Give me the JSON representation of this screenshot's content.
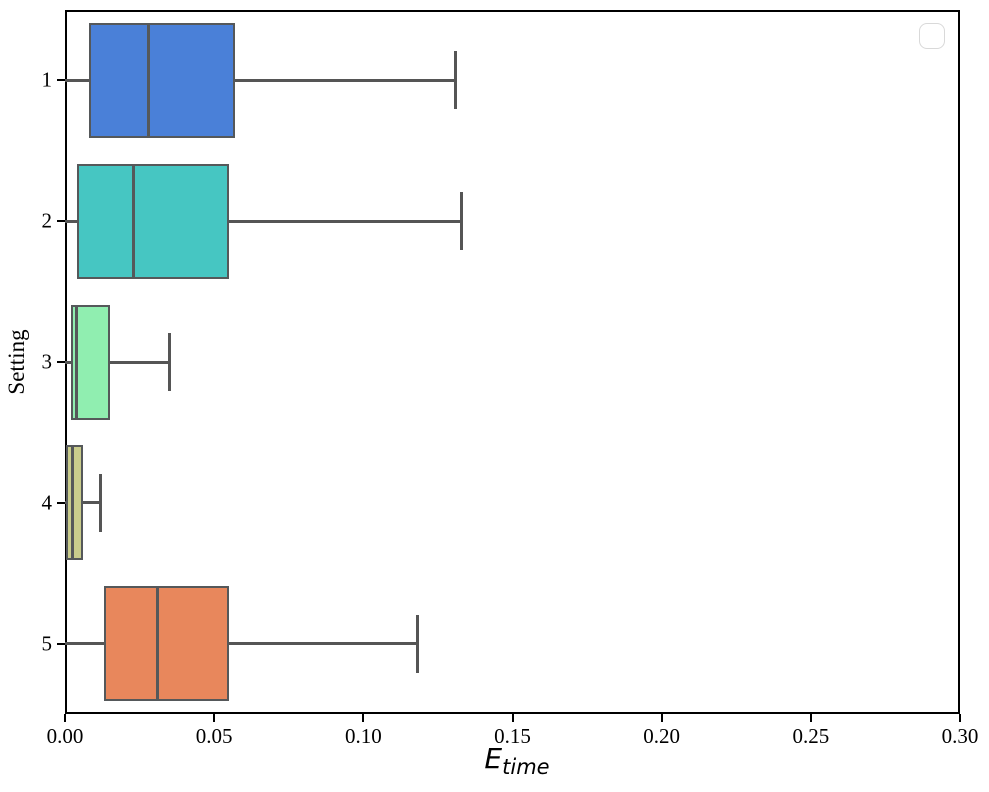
{
  "chart_data": {
    "type": "boxplot",
    "orientation": "horizontal",
    "title": "",
    "xlabel_main": "E",
    "xlabel_sub": "time",
    "ylabel": "Setting",
    "xlim": [
      0.0,
      0.3
    ],
    "xticks": [
      0.0,
      0.05,
      0.1,
      0.15,
      0.2,
      0.25,
      0.3
    ],
    "xtick_labels": [
      "0.00",
      "0.05",
      "0.10",
      "0.15",
      "0.20",
      "0.25",
      "0.30"
    ],
    "categories": [
      "1",
      "2",
      "3",
      "4",
      "5"
    ],
    "grid": false,
    "legend": {
      "visible": true,
      "entries": []
    },
    "series": [
      {
        "label": "1",
        "color": "#4a80d8",
        "whisker_lo": 0.0,
        "q1": 0.008,
        "median": 0.028,
        "q3": 0.057,
        "whisker_hi": 0.131
      },
      {
        "label": "2",
        "color": "#46c6c2",
        "whisker_lo": 0.0,
        "q1": 0.004,
        "median": 0.023,
        "q3": 0.055,
        "whisker_hi": 0.133
      },
      {
        "label": "3",
        "color": "#90eeb0",
        "whisker_lo": 0.0,
        "q1": 0.002,
        "median": 0.004,
        "q3": 0.015,
        "whisker_hi": 0.035
      },
      {
        "label": "4",
        "color": "#c9cc8c",
        "whisker_lo": 0.0,
        "q1": 0.0005,
        "median": 0.0025,
        "q3": 0.006,
        "whisker_hi": 0.012
      },
      {
        "label": "5",
        "color": "#e8875c",
        "whisker_lo": 0.0,
        "q1": 0.013,
        "median": 0.031,
        "q3": 0.055,
        "whisker_hi": 0.118
      }
    ],
    "line_color": "#555555",
    "spine_color": "#000000"
  }
}
